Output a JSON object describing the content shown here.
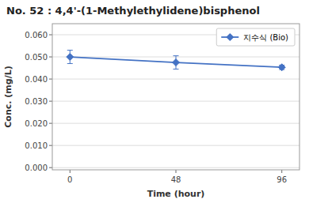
{
  "chart_data": {
    "type": "line",
    "title": "No. 52 : 4,4'-(1-Methylethylidene)bisphenol",
    "xlabel": "Time (hour)",
    "ylabel": "Conc. (mg/L)",
    "x": [
      0,
      48,
      96
    ],
    "series": [
      {
        "name": "지수식 (Bio)",
        "color": "#4472C4",
        "marker": "diamond",
        "values": [
          0.05,
          0.0475,
          0.0453
        ],
        "errors": [
          0.003,
          0.003,
          0.001
        ]
      }
    ],
    "xlim": [
      -8,
      104
    ],
    "xticks": [
      0,
      48,
      96
    ],
    "ylim": [
      -0.001,
      0.065
    ],
    "yticks": [
      {
        "value": 0.0,
        "label": "0.000"
      },
      {
        "value": 0.01,
        "label": "0.010"
      },
      {
        "value": 0.02,
        "label": "0.020"
      },
      {
        "value": 0.03,
        "label": "0.030"
      },
      {
        "value": 0.04,
        "label": "0.040"
      },
      {
        "value": 0.05,
        "label": "0.050"
      },
      {
        "value": 0.06,
        "label": "0.060"
      }
    ],
    "grid": true,
    "legend": "upper right"
  }
}
